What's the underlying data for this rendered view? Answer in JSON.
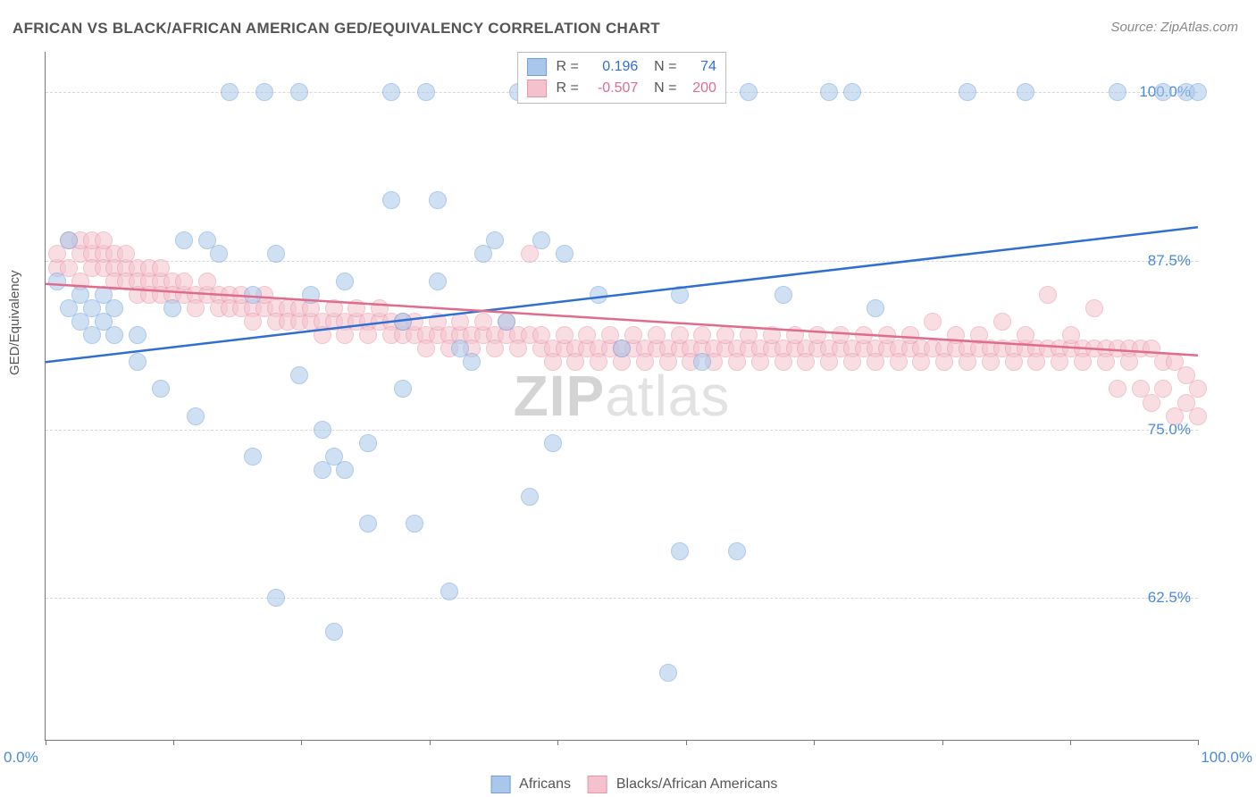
{
  "title": "AFRICAN VS BLACK/AFRICAN AMERICAN GED/EQUIVALENCY CORRELATION CHART",
  "source": "Source: ZipAtlas.com",
  "ylabel": "GED/Equivalency",
  "watermark": "ZIPatlas",
  "chart": {
    "type": "scatter",
    "background_color": "#ffffff",
    "grid_color": "#d8d8d8",
    "axis_color": "#777777",
    "label_color": "#555555",
    "tick_label_color": "#4a8ad8",
    "tick_fontsize": 17,
    "label_fontsize": 15,
    "title_fontsize": 17,
    "marker_radius": 9,
    "marker_opacity": 0.55,
    "line_width": 2.5,
    "xlim": [
      0,
      100
    ],
    "ylim": [
      52,
      103
    ],
    "yticks": [
      62.5,
      75.0,
      87.5,
      100.0
    ],
    "ytick_labels": [
      "62.5%",
      "75.0%",
      "87.5%",
      "100.0%"
    ],
    "xticks": [
      0,
      11.1,
      22.2,
      33.3,
      44.4,
      55.6,
      66.7,
      77.8,
      88.9,
      100
    ],
    "xtick_labels": {
      "start": "0.0%",
      "end": "100.0%"
    }
  },
  "series": {
    "africans": {
      "label": "Africans",
      "marker_fill": "#a9c7ea",
      "marker_stroke": "#6fa0d9",
      "line_color": "#2e6fd0",
      "R": "0.196",
      "N": "74",
      "trend": {
        "x1": 0,
        "y1": 80.0,
        "x2": 100,
        "y2": 90.0
      },
      "points": [
        [
          1,
          86
        ],
        [
          2,
          84
        ],
        [
          2,
          89
        ],
        [
          3,
          83
        ],
        [
          3,
          85
        ],
        [
          4,
          82
        ],
        [
          4,
          84
        ],
        [
          5,
          83
        ],
        [
          5,
          85
        ],
        [
          6,
          82
        ],
        [
          6,
          84
        ],
        [
          8,
          82
        ],
        [
          8,
          80
        ],
        [
          10,
          78
        ],
        [
          11,
          84
        ],
        [
          12,
          89
        ],
        [
          13,
          76
        ],
        [
          14,
          89
        ],
        [
          15,
          88
        ],
        [
          16,
          100
        ],
        [
          18,
          73
        ],
        [
          18,
          85
        ],
        [
          19,
          100
        ],
        [
          20,
          88
        ],
        [
          20,
          62.5
        ],
        [
          22,
          100
        ],
        [
          22,
          79
        ],
        [
          23,
          85
        ],
        [
          24,
          75
        ],
        [
          24,
          72
        ],
        [
          25,
          60
        ],
        [
          25,
          73
        ],
        [
          26,
          72
        ],
        [
          26,
          86
        ],
        [
          28,
          68
        ],
        [
          28,
          74
        ],
        [
          30,
          100
        ],
        [
          30,
          92
        ],
        [
          31,
          83
        ],
        [
          31,
          78
        ],
        [
          32,
          68
        ],
        [
          33,
          100
        ],
        [
          34,
          86
        ],
        [
          34,
          92
        ],
        [
          35,
          63
        ],
        [
          36,
          81
        ],
        [
          37,
          80
        ],
        [
          38,
          88
        ],
        [
          39,
          89
        ],
        [
          40,
          83
        ],
        [
          41,
          100
        ],
        [
          42,
          70
        ],
        [
          43,
          89
        ],
        [
          44,
          74
        ],
        [
          45,
          88
        ],
        [
          47,
          100
        ],
        [
          48,
          85
        ],
        [
          50,
          81
        ],
        [
          54,
          57
        ],
        [
          55,
          66
        ],
        [
          55,
          85
        ],
        [
          57,
          80
        ],
        [
          60,
          66
        ],
        [
          61,
          100
        ],
        [
          64,
          85
        ],
        [
          68,
          100
        ],
        [
          70,
          100
        ],
        [
          72,
          84
        ],
        [
          80,
          100
        ],
        [
          85,
          100
        ],
        [
          93,
          100
        ],
        [
          97,
          100
        ],
        [
          99,
          100
        ],
        [
          100,
          100
        ]
      ]
    },
    "blacks": {
      "label": "Blacks/African Americans",
      "marker_fill": "#f3c2cd",
      "marker_stroke": "#e695aa",
      "line_color": "#e06b8c",
      "R": "-0.507",
      "N": "200",
      "trend": {
        "x1": 0,
        "y1": 85.8,
        "x2": 100,
        "y2": 80.5
      },
      "points": [
        [
          1,
          87
        ],
        [
          1,
          88
        ],
        [
          2,
          87
        ],
        [
          2,
          89
        ],
        [
          3,
          88
        ],
        [
          3,
          86
        ],
        [
          3,
          89
        ],
        [
          4,
          88
        ],
        [
          4,
          89
        ],
        [
          4,
          87
        ],
        [
          5,
          88
        ],
        [
          5,
          89
        ],
        [
          5,
          87
        ],
        [
          6,
          88
        ],
        [
          6,
          87
        ],
        [
          6,
          86
        ],
        [
          7,
          87
        ],
        [
          7,
          88
        ],
        [
          7,
          86
        ],
        [
          8,
          87
        ],
        [
          8,
          86
        ],
        [
          8,
          85
        ],
        [
          9,
          86
        ],
        [
          9,
          87
        ],
        [
          9,
          85
        ],
        [
          10,
          86
        ],
        [
          10,
          85
        ],
        [
          10,
          87
        ],
        [
          11,
          86
        ],
        [
          11,
          85
        ],
        [
          12,
          85
        ],
        [
          12,
          86
        ],
        [
          13,
          85
        ],
        [
          13,
          84
        ],
        [
          14,
          85
        ],
        [
          14,
          86
        ],
        [
          15,
          85
        ],
        [
          15,
          84
        ],
        [
          16,
          85
        ],
        [
          16,
          84
        ],
        [
          17,
          84
        ],
        [
          17,
          85
        ],
        [
          18,
          84
        ],
        [
          18,
          83
        ],
        [
          19,
          84
        ],
        [
          19,
          85
        ],
        [
          20,
          84
        ],
        [
          20,
          83
        ],
        [
          21,
          84
        ],
        [
          21,
          83
        ],
        [
          22,
          83
        ],
        [
          22,
          84
        ],
        [
          23,
          83
        ],
        [
          23,
          84
        ],
        [
          24,
          83
        ],
        [
          24,
          82
        ],
        [
          25,
          83
        ],
        [
          25,
          84
        ],
        [
          26,
          83
        ],
        [
          26,
          82
        ],
        [
          27,
          83
        ],
        [
          27,
          84
        ],
        [
          28,
          83
        ],
        [
          28,
          82
        ],
        [
          29,
          83
        ],
        [
          29,
          84
        ],
        [
          30,
          83
        ],
        [
          30,
          82
        ],
        [
          31,
          82
        ],
        [
          31,
          83
        ],
        [
          32,
          82
        ],
        [
          32,
          83
        ],
        [
          33,
          82
        ],
        [
          33,
          81
        ],
        [
          34,
          82
        ],
        [
          34,
          83
        ],
        [
          35,
          82
        ],
        [
          35,
          81
        ],
        [
          36,
          82
        ],
        [
          36,
          83
        ],
        [
          37,
          82
        ],
        [
          37,
          81
        ],
        [
          38,
          82
        ],
        [
          38,
          83
        ],
        [
          39,
          82
        ],
        [
          39,
          81
        ],
        [
          40,
          82
        ],
        [
          40,
          83
        ],
        [
          41,
          82
        ],
        [
          41,
          81
        ],
        [
          42,
          82
        ],
        [
          42,
          88
        ],
        [
          43,
          81
        ],
        [
          43,
          82
        ],
        [
          44,
          81
        ],
        [
          44,
          80
        ],
        [
          45,
          81
        ],
        [
          45,
          82
        ],
        [
          46,
          81
        ],
        [
          46,
          80
        ],
        [
          47,
          81
        ],
        [
          47,
          82
        ],
        [
          48,
          81
        ],
        [
          48,
          80
        ],
        [
          49,
          81
        ],
        [
          49,
          82
        ],
        [
          50,
          81
        ],
        [
          50,
          80
        ],
        [
          51,
          81
        ],
        [
          51,
          82
        ],
        [
          52,
          81
        ],
        [
          52,
          80
        ],
        [
          53,
          81
        ],
        [
          53,
          82
        ],
        [
          54,
          81
        ],
        [
          54,
          80
        ],
        [
          55,
          81
        ],
        [
          55,
          82
        ],
        [
          56,
          81
        ],
        [
          56,
          80
        ],
        [
          57,
          81
        ],
        [
          57,
          82
        ],
        [
          58,
          81
        ],
        [
          58,
          80
        ],
        [
          59,
          81
        ],
        [
          59,
          82
        ],
        [
          60,
          81
        ],
        [
          60,
          80
        ],
        [
          61,
          81
        ],
        [
          61,
          82
        ],
        [
          62,
          81
        ],
        [
          62,
          80
        ],
        [
          63,
          81
        ],
        [
          63,
          82
        ],
        [
          64,
          81
        ],
        [
          64,
          80
        ],
        [
          65,
          81
        ],
        [
          65,
          82
        ],
        [
          66,
          81
        ],
        [
          66,
          80
        ],
        [
          67,
          81
        ],
        [
          67,
          82
        ],
        [
          68,
          81
        ],
        [
          68,
          80
        ],
        [
          69,
          81
        ],
        [
          69,
          82
        ],
        [
          70,
          81
        ],
        [
          70,
          80
        ],
        [
          71,
          81
        ],
        [
          71,
          82
        ],
        [
          72,
          81
        ],
        [
          72,
          80
        ],
        [
          73,
          81
        ],
        [
          73,
          82
        ],
        [
          74,
          81
        ],
        [
          74,
          80
        ],
        [
          75,
          81
        ],
        [
          75,
          82
        ],
        [
          76,
          81
        ],
        [
          76,
          80
        ],
        [
          77,
          81
        ],
        [
          77,
          83
        ],
        [
          78,
          81
        ],
        [
          78,
          80
        ],
        [
          79,
          81
        ],
        [
          79,
          82
        ],
        [
          80,
          81
        ],
        [
          80,
          80
        ],
        [
          81,
          81
        ],
        [
          81,
          82
        ],
        [
          82,
          81
        ],
        [
          82,
          80
        ],
        [
          83,
          81
        ],
        [
          83,
          83
        ],
        [
          84,
          81
        ],
        [
          84,
          80
        ],
        [
          85,
          81
        ],
        [
          85,
          82
        ],
        [
          86,
          81
        ],
        [
          86,
          80
        ],
        [
          87,
          81
        ],
        [
          87,
          85
        ],
        [
          88,
          81
        ],
        [
          88,
          80
        ],
        [
          89,
          81
        ],
        [
          89,
          82
        ],
        [
          90,
          81
        ],
        [
          90,
          80
        ],
        [
          91,
          81
        ],
        [
          91,
          84
        ],
        [
          92,
          81
        ],
        [
          92,
          80
        ],
        [
          93,
          81
        ],
        [
          93,
          78
        ],
        [
          94,
          81
        ],
        [
          94,
          80
        ],
        [
          95,
          81
        ],
        [
          95,
          78
        ],
        [
          96,
          81
        ],
        [
          96,
          77
        ],
        [
          97,
          80
        ],
        [
          97,
          78
        ],
        [
          98,
          80
        ],
        [
          98,
          76
        ],
        [
          99,
          79
        ],
        [
          99,
          77
        ],
        [
          100,
          78
        ],
        [
          100,
          76
        ]
      ]
    }
  },
  "legend_top": {
    "r_label": "R =",
    "n_label": "N ="
  }
}
